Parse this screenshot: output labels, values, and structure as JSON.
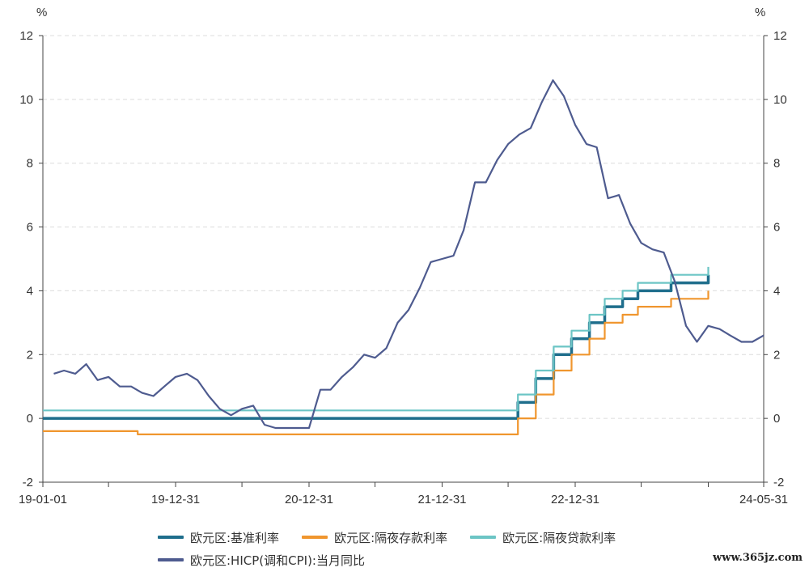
{
  "chart_data": {
    "type": "line",
    "left_unit": "%",
    "right_unit": "%",
    "ylim": [
      -2,
      12
    ],
    "yticks": [
      -2,
      0,
      2,
      4,
      6,
      8,
      10,
      12
    ],
    "ytick_labels": [
      "-2",
      "0",
      "2",
      "4",
      "6",
      "8",
      "10",
      "12"
    ],
    "x_range": [
      "2019-01-01",
      "2024-05-31"
    ],
    "x_tick_marks": [
      "2019-01-01",
      "2019-06-30",
      "2019-12-31",
      "2020-06-30",
      "2020-12-31",
      "2021-06-30",
      "2021-12-31",
      "2022-06-30",
      "2022-12-31",
      "2023-06-30",
      "2023-12-31",
      "2024-05-31"
    ],
    "x_labels": [
      {
        "date": "2019-01-01",
        "text": "19-01-01"
      },
      {
        "date": "2019-12-31",
        "text": "19-12-31"
      },
      {
        "date": "2020-12-31",
        "text": "20-12-31"
      },
      {
        "date": "2021-12-31",
        "text": "21-12-31"
      },
      {
        "date": "2022-12-31",
        "text": "22-12-31"
      },
      {
        "date": "2024-05-31",
        "text": "24-05-31"
      }
    ],
    "grid": "horizontal dashed",
    "legend_position": "bottom",
    "series": [
      {
        "name": "欧元区:基准利率",
        "color": "#1f6e8c",
        "style": "step",
        "points": [
          [
            "2019-01-01",
            0
          ],
          [
            "2022-07-27",
            0
          ],
          [
            "2022-07-27",
            0.5
          ],
          [
            "2022-09-14",
            0.5
          ],
          [
            "2022-09-14",
            1.25
          ],
          [
            "2022-11-02",
            1.25
          ],
          [
            "2022-11-02",
            2.0
          ],
          [
            "2022-12-21",
            2.0
          ],
          [
            "2022-12-21",
            2.5
          ],
          [
            "2023-02-08",
            2.5
          ],
          [
            "2023-02-08",
            3.0
          ],
          [
            "2023-03-22",
            3.0
          ],
          [
            "2023-03-22",
            3.5
          ],
          [
            "2023-05-10",
            3.5
          ],
          [
            "2023-05-10",
            3.75
          ],
          [
            "2023-06-21",
            3.75
          ],
          [
            "2023-06-21",
            4.0
          ],
          [
            "2023-08-02",
            4.0
          ],
          [
            "2023-09-20",
            4.0
          ],
          [
            "2023-09-20",
            4.25
          ],
          [
            "2023-12-31",
            4.25
          ],
          [
            "2023-12-31",
            4.5
          ]
        ]
      },
      {
        "name": "欧元区:隔夜存款利率",
        "color": "#f0962e",
        "style": "step",
        "points": [
          [
            "2019-01-01",
            -0.4
          ],
          [
            "2019-09-18",
            -0.4
          ],
          [
            "2019-09-18",
            -0.5
          ],
          [
            "2022-07-27",
            -0.5
          ],
          [
            "2022-07-27",
            0
          ],
          [
            "2022-09-14",
            0
          ],
          [
            "2022-09-14",
            0.75
          ],
          [
            "2022-11-02",
            0.75
          ],
          [
            "2022-11-02",
            1.5
          ],
          [
            "2022-12-21",
            1.5
          ],
          [
            "2022-12-21",
            2.0
          ],
          [
            "2023-02-08",
            2.0
          ],
          [
            "2023-02-08",
            2.5
          ],
          [
            "2023-03-22",
            2.5
          ],
          [
            "2023-03-22",
            3.0
          ],
          [
            "2023-05-10",
            3.0
          ],
          [
            "2023-05-10",
            3.25
          ],
          [
            "2023-06-21",
            3.25
          ],
          [
            "2023-06-21",
            3.5
          ],
          [
            "2023-09-20",
            3.5
          ],
          [
            "2023-09-20",
            3.75
          ],
          [
            "2023-12-31",
            3.75
          ],
          [
            "2023-12-31",
            4.0
          ]
        ]
      },
      {
        "name": "欧元区:隔夜贷款利率",
        "color": "#6cc5c5",
        "style": "step",
        "points": [
          [
            "2019-01-01",
            0.25
          ],
          [
            "2022-07-27",
            0.25
          ],
          [
            "2022-07-27",
            0.75
          ],
          [
            "2022-09-14",
            0.75
          ],
          [
            "2022-09-14",
            1.5
          ],
          [
            "2022-11-02",
            1.5
          ],
          [
            "2022-11-02",
            2.25
          ],
          [
            "2022-12-21",
            2.25
          ],
          [
            "2022-12-21",
            2.75
          ],
          [
            "2023-02-08",
            2.75
          ],
          [
            "2023-02-08",
            3.25
          ],
          [
            "2023-03-22",
            3.25
          ],
          [
            "2023-03-22",
            3.75
          ],
          [
            "2023-05-10",
            3.75
          ],
          [
            "2023-05-10",
            4.0
          ],
          [
            "2023-06-21",
            4.0
          ],
          [
            "2023-06-21",
            4.25
          ],
          [
            "2023-09-20",
            4.25
          ],
          [
            "2023-09-20",
            4.5
          ],
          [
            "2023-12-31",
            4.5
          ],
          [
            "2023-12-31",
            4.75
          ]
        ]
      },
      {
        "name": "欧元区:HICP(调和CPI):当月同比",
        "color": "#4e5b8f",
        "style": "line",
        "points": [
          [
            "2019-01-31",
            1.4
          ],
          [
            "2019-02-28",
            1.5
          ],
          [
            "2019-03-31",
            1.4
          ],
          [
            "2019-04-30",
            1.7
          ],
          [
            "2019-05-31",
            1.2
          ],
          [
            "2019-06-30",
            1.3
          ],
          [
            "2019-07-31",
            1.0
          ],
          [
            "2019-08-31",
            1.0
          ],
          [
            "2019-09-30",
            0.8
          ],
          [
            "2019-10-31",
            0.7
          ],
          [
            "2019-11-30",
            1.0
          ],
          [
            "2019-12-31",
            1.3
          ],
          [
            "2020-01-31",
            1.4
          ],
          [
            "2020-02-29",
            1.2
          ],
          [
            "2020-03-31",
            0.7
          ],
          [
            "2020-04-30",
            0.3
          ],
          [
            "2020-05-31",
            0.1
          ],
          [
            "2020-06-30",
            0.3
          ],
          [
            "2020-07-31",
            0.4
          ],
          [
            "2020-08-31",
            -0.2
          ],
          [
            "2020-09-30",
            -0.3
          ],
          [
            "2020-10-31",
            -0.3
          ],
          [
            "2020-11-30",
            -0.3
          ],
          [
            "2020-12-31",
            -0.3
          ],
          [
            "2021-01-31",
            0.9
          ],
          [
            "2021-02-28",
            0.9
          ],
          [
            "2021-03-31",
            1.3
          ],
          [
            "2021-04-30",
            1.6
          ],
          [
            "2021-05-31",
            2.0
          ],
          [
            "2021-06-30",
            1.9
          ],
          [
            "2021-07-31",
            2.2
          ],
          [
            "2021-08-31",
            3.0
          ],
          [
            "2021-09-30",
            3.4
          ],
          [
            "2021-10-31",
            4.1
          ],
          [
            "2021-11-30",
            4.9
          ],
          [
            "2021-12-31",
            5.0
          ],
          [
            "2022-01-31",
            5.1
          ],
          [
            "2022-02-28",
            5.9
          ],
          [
            "2022-03-31",
            7.4
          ],
          [
            "2022-04-30",
            7.4
          ],
          [
            "2022-05-31",
            8.1
          ],
          [
            "2022-06-30",
            8.6
          ],
          [
            "2022-07-31",
            8.9
          ],
          [
            "2022-08-31",
            9.1
          ],
          [
            "2022-09-30",
            9.9
          ],
          [
            "2022-10-31",
            10.6
          ],
          [
            "2022-11-30",
            10.1
          ],
          [
            "2022-12-31",
            9.2
          ],
          [
            "2023-01-31",
            8.6
          ],
          [
            "2023-02-28",
            8.5
          ],
          [
            "2023-03-31",
            6.9
          ],
          [
            "2023-04-30",
            7.0
          ],
          [
            "2023-05-31",
            6.1
          ],
          [
            "2023-06-30",
            5.5
          ],
          [
            "2023-07-31",
            5.3
          ],
          [
            "2023-08-31",
            5.2
          ],
          [
            "2023-09-30",
            4.3
          ],
          [
            "2023-10-31",
            2.9
          ],
          [
            "2023-11-30",
            2.4
          ],
          [
            "2023-12-31",
            2.9
          ],
          [
            "2024-01-31",
            2.8
          ],
          [
            "2024-02-29",
            2.6
          ],
          [
            "2024-03-31",
            2.4
          ],
          [
            "2024-04-30",
            2.4
          ],
          [
            "2024-05-31",
            2.6
          ]
        ]
      }
    ]
  },
  "watermark": "www.365jz.com"
}
